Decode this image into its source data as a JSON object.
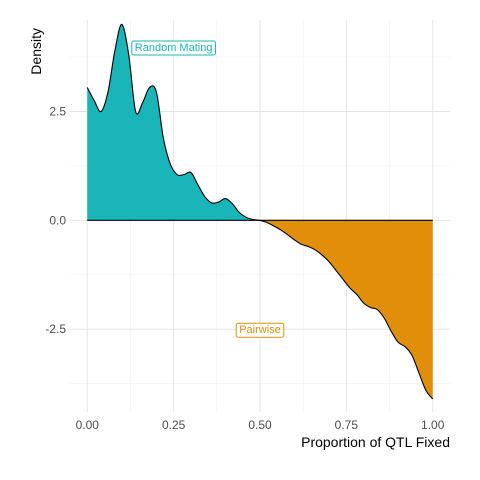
{
  "chart_data": {
    "type": "area",
    "title": "",
    "xlabel": "Proportion of QTL Fixed",
    "ylabel": "Density",
    "xlim": [
      -0.05,
      1.05
    ],
    "ylim": [
      -4.4,
      4.6
    ],
    "x_ticks": [
      0.0,
      0.25,
      0.5,
      0.75,
      1.0
    ],
    "x_tick_labels": [
      "0.00",
      "0.25",
      "0.50",
      "0.75",
      "1.00"
    ],
    "y_ticks": [
      -2.5,
      0.0,
      2.5
    ],
    "y_tick_labels": [
      "-2.5",
      "0.0",
      "2.5"
    ],
    "grid": true,
    "legend": "none",
    "series": [
      {
        "name": "Random Mating",
        "color": "#1ab5b9",
        "x": [
          0.0,
          0.02,
          0.04,
          0.06,
          0.08,
          0.1,
          0.12,
          0.14,
          0.16,
          0.18,
          0.2,
          0.22,
          0.24,
          0.26,
          0.28,
          0.3,
          0.32,
          0.34,
          0.36,
          0.38,
          0.4,
          0.42,
          0.44,
          0.46,
          0.48,
          0.5
        ],
        "values": [
          3.05,
          2.75,
          2.5,
          2.95,
          3.9,
          4.5,
          3.8,
          2.5,
          2.7,
          3.05,
          2.95,
          1.9,
          1.3,
          1.05,
          1.05,
          1.1,
          0.82,
          0.55,
          0.4,
          0.42,
          0.5,
          0.38,
          0.18,
          0.07,
          0.02,
          0.0
        ]
      },
      {
        "name": "Pairwise",
        "color": "#e18f0b",
        "x": [
          0.5,
          0.52,
          0.54,
          0.56,
          0.58,
          0.6,
          0.62,
          0.64,
          0.66,
          0.68,
          0.7,
          0.72,
          0.74,
          0.76,
          0.78,
          0.8,
          0.82,
          0.84,
          0.86,
          0.88,
          0.9,
          0.92,
          0.94,
          0.96,
          0.98,
          1.0
        ],
        "values": [
          0.0,
          -0.05,
          -0.13,
          -0.22,
          -0.33,
          -0.45,
          -0.55,
          -0.6,
          -0.68,
          -0.8,
          -0.95,
          -1.15,
          -1.35,
          -1.55,
          -1.7,
          -1.9,
          -2.0,
          -2.05,
          -2.25,
          -2.55,
          -2.8,
          -2.9,
          -3.1,
          -3.5,
          -3.9,
          -4.1
        ]
      }
    ],
    "annotations": [
      {
        "text": "Random Mating",
        "x": 0.25,
        "y": 3.98,
        "color": "#1ab5b9"
      },
      {
        "text": "Pairwise",
        "x": 0.5,
        "y": -2.5,
        "color": "#e18f0b"
      }
    ]
  }
}
